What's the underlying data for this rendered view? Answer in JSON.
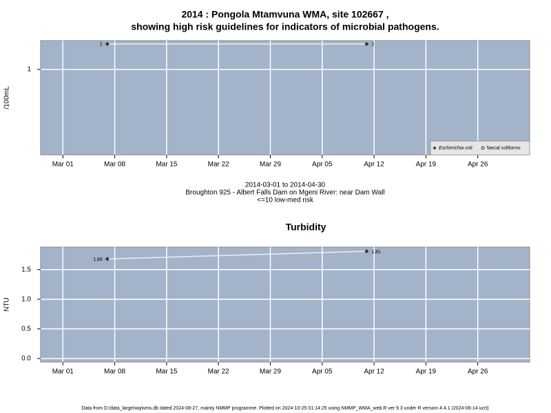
{
  "title": "2014 : Pongola Mtamvuna WMA, site 102667 ,",
  "subtitle": "showing high risk guidelines for indicators of microbial pathogens.",
  "footer": "Data from D:/data_large/wq/wms.db dated 2024-08-27, mainly NMMP programme. Plotted on 2024-10-25 01:14:25 using NMMP_WMA_web.R ver 9.3 under R version 4.4.1 (2024-06-14 ucrt)",
  "chart_data": [
    {
      "type": "line",
      "ylabel": "/100mL",
      "yscale": "log",
      "x": [
        "2014-03-07",
        "2014-04-11"
      ],
      "series": [
        {
          "name": "Escherichia coli",
          "color": "#333333",
          "marker": "diamond",
          "values": [
            2,
            2
          ]
        },
        {
          "name": "faecal coliforms",
          "color": "#333333",
          "marker": "open-circle",
          "values": [
            null,
            null
          ]
        }
      ],
      "xlim": [
        "2014-02-26",
        "2014-05-03"
      ],
      "xticks": [
        {
          "value": "2014-03-01",
          "label": "Mar 01"
        },
        {
          "value": "2014-03-08",
          "label": "Mar 08"
        },
        {
          "value": "2014-03-15",
          "label": "Mar 15"
        },
        {
          "value": "2014-03-22",
          "label": "Mar 22"
        },
        {
          "value": "2014-03-29",
          "label": "Mar 29"
        },
        {
          "value": "2014-04-05",
          "label": "Apr 05"
        },
        {
          "value": "2014-04-12",
          "label": "Apr 12"
        },
        {
          "value": "2014-04-19",
          "label": "Apr 19"
        },
        {
          "value": "2014-04-26",
          "label": "Apr 26"
        }
      ],
      "ylim": [
        0.098,
        2.19
      ],
      "yticks": [
        1
      ],
      "grid": true,
      "legend": "lower right",
      "annotations": [
        "2014-03-01 to 2014-04-30",
        "Broughton 925 - Albert Falls Dam on Mgeni River: near Dam Wall",
        "<=10 low-med risk"
      ]
    },
    {
      "type": "line",
      "title": "Turbidity",
      "ylabel": "NTU",
      "yscale": "linear",
      "x": [
        "2014-03-07",
        "2014-04-11"
      ],
      "series": [
        {
          "name": "Turbidity",
          "color": "#333333",
          "marker": "diamond",
          "values": [
            1.68,
            1.81
          ]
        }
      ],
      "xlim": [
        "2014-02-26",
        "2014-05-03"
      ],
      "xticks": [
        {
          "value": "2014-03-01",
          "label": "Mar 01"
        },
        {
          "value": "2014-03-08",
          "label": "Mar 08"
        },
        {
          "value": "2014-03-15",
          "label": "Mar 15"
        },
        {
          "value": "2014-03-22",
          "label": "Mar 22"
        },
        {
          "value": "2014-03-29",
          "label": "Mar 29"
        },
        {
          "value": "2014-04-05",
          "label": "Apr 05"
        },
        {
          "value": "2014-04-12",
          "label": "Apr 12"
        },
        {
          "value": "2014-04-19",
          "label": "Apr 19"
        },
        {
          "value": "2014-04-26",
          "label": "Apr 26"
        }
      ],
      "ylim": [
        -0.06,
        1.88
      ],
      "yticks": [
        {
          "value": 0,
          "label": "0.0"
        },
        {
          "value": 0.5,
          "label": "0.5"
        },
        {
          "value": 1,
          "label": "1.0"
        },
        {
          "value": 1.5,
          "label": "1.5"
        }
      ],
      "grid": true
    }
  ]
}
